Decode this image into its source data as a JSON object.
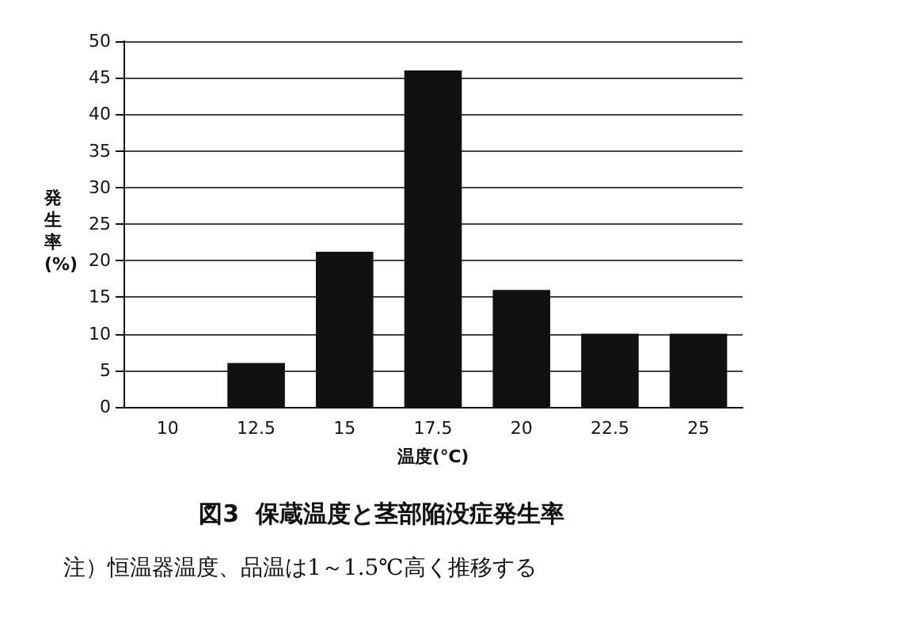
{
  "chart_data": {
    "type": "bar",
    "title": "図3  保蔵温度と茎部陥没症発生率",
    "xlabel": "温度(℃)",
    "ylabel": "発生率(%)",
    "categories": [
      "10",
      "12.5",
      "15",
      "17.5",
      "20",
      "22.5",
      "25"
    ],
    "values": [
      0,
      6,
      21.2,
      46,
      16,
      10,
      10
    ],
    "color": "#111111",
    "ylim": [
      0,
      50
    ],
    "yticks": [
      0,
      5,
      10,
      15,
      20,
      25,
      30,
      35,
      40,
      45,
      50
    ],
    "grid": "y",
    "annotations": [
      "注）恒温器温度、品温は1～1.5℃高く推移する"
    ]
  }
}
